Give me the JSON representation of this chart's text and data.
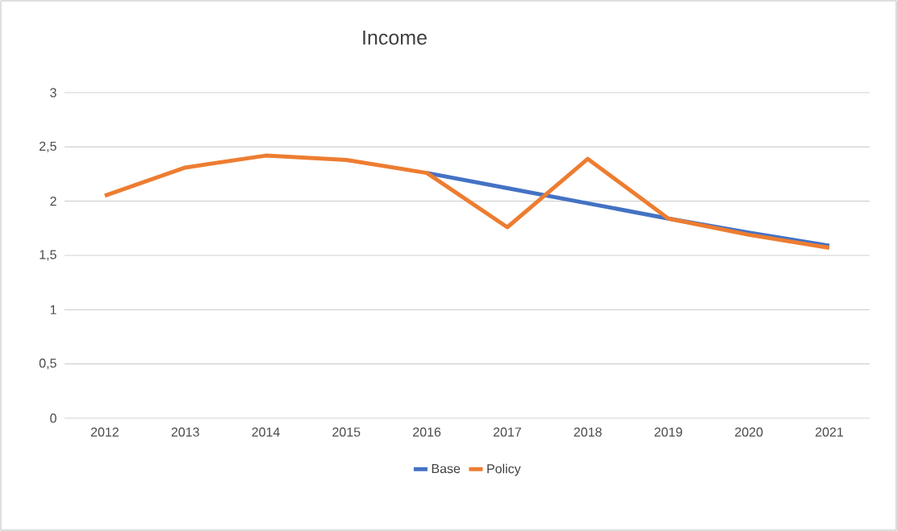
{
  "chart_data": {
    "type": "line",
    "title": "Income",
    "categories": [
      "2012",
      "2013",
      "2014",
      "2015",
      "2016",
      "2017",
      "2018",
      "2019",
      "2020",
      "2021"
    ],
    "series": [
      {
        "name": "Base",
        "color": "#4472c4",
        "values": [
          null,
          null,
          null,
          null,
          2.26,
          2.12,
          1.98,
          1.84,
          1.71,
          1.59
        ]
      },
      {
        "name": "Policy",
        "color": "#ed7d31",
        "values": [
          2.05,
          2.31,
          2.42,
          2.38,
          2.26,
          1.76,
          2.39,
          1.84,
          1.69,
          1.57
        ]
      }
    ],
    "ylim": [
      0,
      3
    ],
    "yticks": [
      0,
      {
        "value": 0.5,
        "label": "0,5"
      },
      1,
      {
        "value": 1.5,
        "label": "1,5"
      },
      2,
      {
        "value": 2.5,
        "label": "2,5"
      },
      3
    ],
    "grid": "y",
    "legend": "bottom",
    "marker": "none",
    "line_style": "solid"
  }
}
